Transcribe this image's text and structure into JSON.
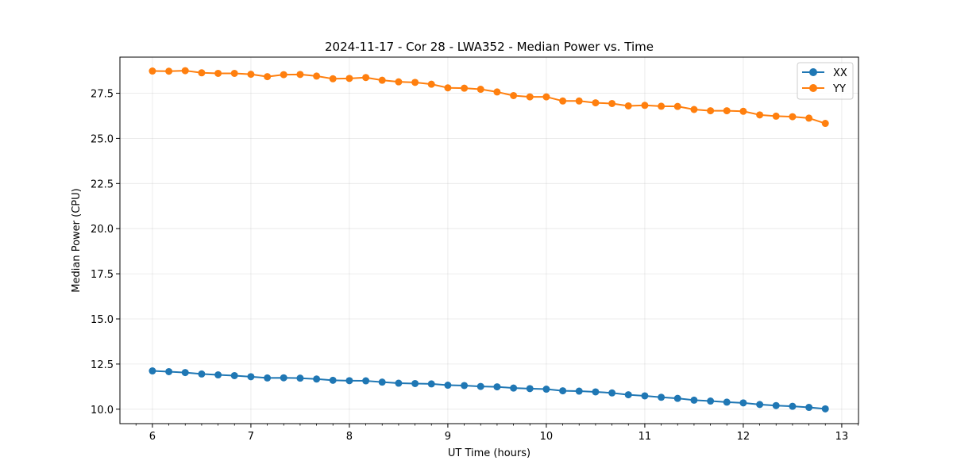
{
  "chart_data": {
    "type": "line",
    "title": "2024-11-17 - Cor 28 - LWA352 - Median Power vs. Time",
    "xlabel": "UT Time (hours)",
    "ylabel": "Median Power (CPU)",
    "xlim": [
      5.67,
      13.17
    ],
    "ylim": [
      9.2,
      29.5
    ],
    "grid": true,
    "legend_position": "top-right",
    "x_ticks": [
      6,
      7,
      8,
      9,
      10,
      11,
      12,
      13
    ],
    "y_ticks": [
      10.0,
      12.5,
      15.0,
      17.5,
      20.0,
      22.5,
      25.0,
      27.5
    ],
    "x_tick_labels": [
      "6",
      "7",
      "8",
      "9",
      "10",
      "11",
      "12",
      "13"
    ],
    "y_tick_labels": [
      "10.0",
      "12.5",
      "15.0",
      "17.5",
      "20.0",
      "22.5",
      "25.0",
      "27.5"
    ],
    "x": [
      6.0,
      6.167,
      6.333,
      6.5,
      6.667,
      6.833,
      7.0,
      7.167,
      7.333,
      7.5,
      7.667,
      7.833,
      8.0,
      8.167,
      8.333,
      8.5,
      8.667,
      8.833,
      9.0,
      9.167,
      9.333,
      9.5,
      9.667,
      9.833,
      10.0,
      10.167,
      10.333,
      10.5,
      10.667,
      10.833,
      11.0,
      11.167,
      11.333,
      11.5,
      11.667,
      11.833,
      12.0,
      12.167,
      12.333,
      12.5,
      12.667,
      12.833
    ],
    "series": [
      {
        "name": "XX",
        "color": "#1f77b4",
        "values": [
          12.12,
          12.08,
          12.03,
          11.95,
          11.9,
          11.86,
          11.8,
          11.73,
          11.74,
          11.72,
          11.67,
          11.6,
          11.58,
          11.57,
          11.5,
          11.44,
          11.42,
          11.4,
          11.33,
          11.31,
          11.26,
          11.24,
          11.17,
          11.14,
          11.11,
          11.02,
          11.0,
          10.96,
          10.9,
          10.8,
          10.74,
          10.66,
          10.6,
          10.5,
          10.45,
          10.39,
          10.35,
          10.26,
          10.2,
          10.16,
          10.1,
          10.02
        ]
      },
      {
        "name": "YY",
        "color": "#ff7f0e",
        "values": [
          28.73,
          28.72,
          28.75,
          28.63,
          28.6,
          28.6,
          28.55,
          28.42,
          28.53,
          28.54,
          28.45,
          28.3,
          28.32,
          28.37,
          28.22,
          28.13,
          28.1,
          28.0,
          27.8,
          27.78,
          27.72,
          27.57,
          27.37,
          27.3,
          27.3,
          27.07,
          27.07,
          26.97,
          26.93,
          26.8,
          26.83,
          26.78,
          26.77,
          26.6,
          26.53,
          26.53,
          26.5,
          26.3,
          26.23,
          26.2,
          26.12,
          25.83
        ]
      }
    ]
  }
}
